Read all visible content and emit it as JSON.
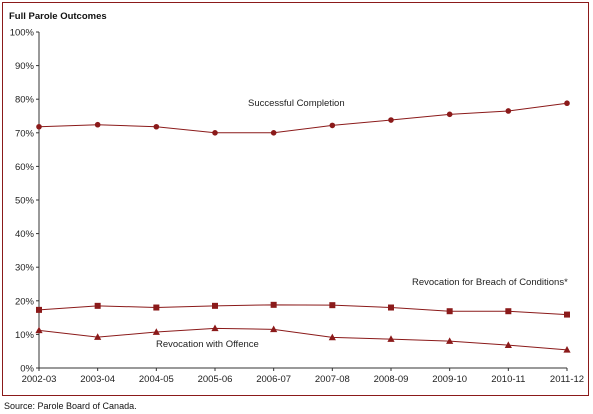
{
  "chart_data": {
    "type": "line",
    "title": "Full Parole Outcomes",
    "categories": [
      "2002-03",
      "2003-04",
      "2004-05",
      "2005-06",
      "2006-07",
      "2007-08",
      "2008-09",
      "2009-10",
      "2010-11",
      "2011-12"
    ],
    "ylim": [
      0,
      100
    ],
    "yticks": [
      "0%",
      "10%",
      "20%",
      "30%",
      "40%",
      "50%",
      "60%",
      "70%",
      "80%",
      "90%",
      "100%"
    ],
    "grid": false,
    "series": [
      {
        "name": "Successful Completion",
        "marker": "circle",
        "values": [
          71.8,
          72.4,
          71.8,
          70.0,
          70.0,
          72.2,
          73.8,
          75.5,
          76.5,
          78.8
        ]
      },
      {
        "name": "Revocation for Breach of Conditions*",
        "marker": "square",
        "values": [
          17.3,
          18.5,
          18.0,
          18.5,
          18.8,
          18.7,
          18.0,
          16.9,
          16.9,
          15.9
        ]
      },
      {
        "name": "Revocation with Offence",
        "marker": "triangle",
        "values": [
          11.2,
          9.2,
          10.7,
          11.8,
          11.5,
          9.1,
          8.6,
          8.0,
          6.8,
          5.4
        ]
      }
    ],
    "color": "#8b1a1a"
  },
  "source": "Source:  Parole Board of Canada."
}
